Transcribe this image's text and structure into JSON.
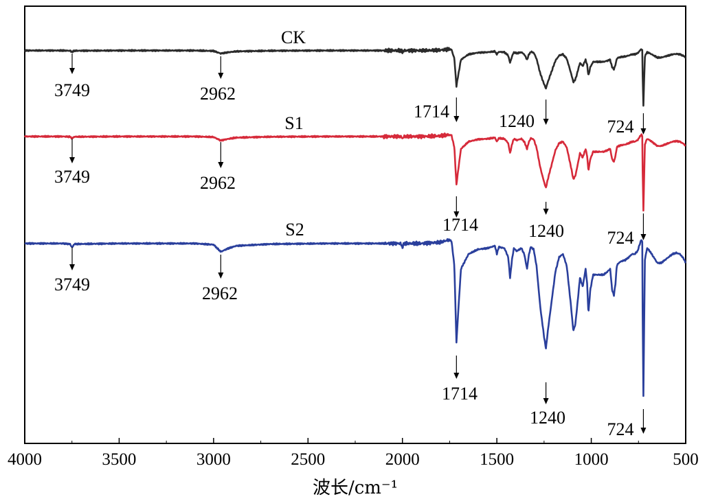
{
  "chart_data": {
    "type": "line",
    "title": "",
    "xlabel": "波长/cm⁻¹",
    "ylabel": "",
    "xlim": [
      4000,
      500
    ],
    "x_reversed": true,
    "xticks": [
      4000,
      3500,
      3000,
      2500,
      2000,
      1500,
      1000,
      500
    ],
    "xtick_labels": [
      "4000",
      "3500",
      "3000",
      "2500",
      "2000",
      "1500",
      "1000",
      "500"
    ],
    "yticks_shown": false,
    "grid": false,
    "legend": "none (series labeled directly above traces)",
    "series": [
      {
        "name": "CK",
        "color": "#2b2b2b",
        "offset": 73,
        "depth_scale": 0.31,
        "peak_labels": [
          "3749",
          "2962",
          "1714",
          "1240",
          "724"
        ]
      },
      {
        "name": "S1",
        "color": "#d62a3a",
        "offset": 198,
        "depth_scale": 0.42,
        "peak_labels": [
          "3749",
          "2962",
          "1714",
          "1240",
          "724"
        ]
      },
      {
        "name": "S2",
        "color": "#2a3f9c",
        "offset": 353,
        "depth_scale": 0.86,
        "peak_labels": [
          "3749",
          "2962",
          "1714",
          "1240",
          "724"
        ]
      }
    ],
    "base_profile": {
      "x": [
        4000,
        3800,
        3760,
        3749,
        3738,
        3500,
        3100,
        3000,
        2962,
        2920,
        2880,
        2700,
        2400,
        2100,
        2010,
        2000,
        1990,
        1900,
        1800,
        1755,
        1740,
        1725,
        1714,
        1705,
        1690,
        1650,
        1600,
        1550,
        1510,
        1500,
        1490,
        1460,
        1440,
        1430,
        1420,
        1410,
        1395,
        1370,
        1355,
        1340,
        1330,
        1320,
        1305,
        1290,
        1270,
        1250,
        1240,
        1230,
        1210,
        1190,
        1170,
        1150,
        1130,
        1110,
        1095,
        1085,
        1075,
        1060,
        1045,
        1030,
        1022,
        1015,
        1005,
        990,
        975,
        955,
        935,
        915,
        900,
        890,
        880,
        872,
        865,
        855,
        840,
        820,
        800,
        785,
        770,
        755,
        745,
        735,
        730,
        728,
        724,
        720,
        716,
        705,
        690,
        670,
        650,
        630,
        610,
        590,
        570,
        550,
        530,
        510,
        500
      ],
      "drop": [
        2,
        2,
        3,
        9,
        3,
        2,
        2,
        4,
        16,
        10,
        6,
        3,
        2,
        2,
        2,
        8,
        2,
        2,
        0,
        -4,
        -2,
        40,
        170,
        120,
        45,
        20,
        12,
        10,
        6,
        20,
        8,
        10,
        25,
        60,
        30,
        10,
        15,
        10,
        20,
        45,
        20,
        8,
        12,
        40,
        110,
        160,
        180,
        150,
        100,
        50,
        25,
        20,
        40,
        100,
        150,
        140,
        110,
        60,
        75,
        45,
        70,
        120,
        80,
        55,
        55,
        55,
        55,
        50,
        45,
        80,
        90,
        70,
        40,
        35,
        32,
        30,
        25,
        20,
        20,
        15,
        5,
        -5,
        0,
        120,
        260,
        140,
        30,
        10,
        15,
        25,
        35,
        35,
        30,
        25,
        20,
        18,
        20,
        28,
        35
      ]
    }
  },
  "annotations": {
    "CK": [
      "3749",
      "2962",
      "1714",
      "1240",
      "724"
    ],
    "S1": [
      "3749",
      "2962",
      "1714",
      "1240",
      "724"
    ],
    "S2": [
      "3749",
      "2962",
      "1714",
      "1240",
      "724"
    ]
  }
}
